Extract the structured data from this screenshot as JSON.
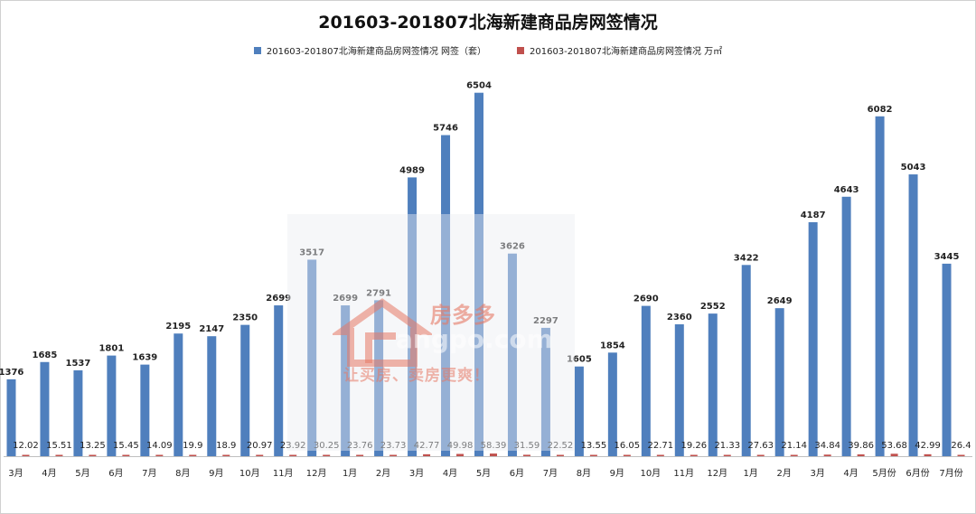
{
  "chart_data": {
    "type": "bar",
    "title": "201603-201807北海新建商品房网签情况",
    "categories": [
      "3月",
      "4月",
      "5月",
      "6月",
      "7月",
      "8月",
      "9月",
      "10月",
      "11月",
      "12月",
      "1月",
      "2月",
      "3月",
      "4月",
      "5月",
      "6月",
      "7月",
      "8月",
      "9月",
      "10月",
      "11月",
      "12月",
      "1月",
      "2月",
      "3月",
      "4月",
      "5月份",
      "6月份",
      "7月份"
    ],
    "series": [
      {
        "name": "201603-201807北海新建商品房网签情况 网签（套）",
        "color": "#4f7fbd",
        "values": [
          1376,
          1685,
          1537,
          1801,
          1639,
          2195,
          2147,
          2350,
          2699,
          3517,
          2699,
          2791,
          4989,
          5746,
          6504,
          3626,
          2297,
          1605,
          1854,
          2690,
          2360,
          2552,
          3422,
          2649,
          4187,
          4643,
          6082,
          5043,
          3445
        ]
      },
      {
        "name": "201603-201807北海新建商品房网签情况 万㎡",
        "color": "#c0504d",
        "values": [
          12.02,
          15.51,
          13.25,
          15.45,
          14.09,
          19.9,
          18.9,
          20.97,
          23.92,
          30.25,
          23.76,
          23.73,
          42.77,
          49.98,
          58.39,
          31.59,
          22.52,
          13.55,
          16.05,
          22.71,
          19.26,
          21.33,
          27.63,
          21.14,
          34.84,
          39.86,
          53.68,
          42.99,
          26.4
        ]
      }
    ],
    "ylim": [
      0,
      7000
    ],
    "grid": false,
    "legend_position": "top"
  },
  "watermark": {
    "brand": "房多多",
    "url_text": "angpo.com",
    "slogan": "让买房、卖房更爽！"
  }
}
